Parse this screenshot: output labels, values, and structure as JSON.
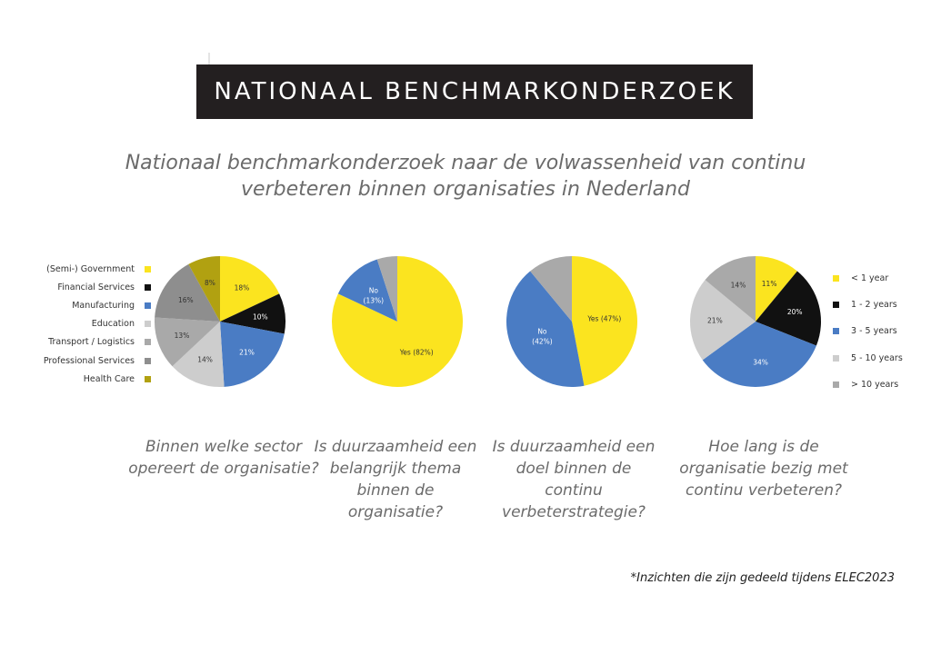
{
  "header": {
    "title": "NATIONAAL BENCHMARKONDERZOEK",
    "subtitle": "Nationaal benchmarkonderzoek naar de volwassenheid van continu verbeteren binnen organisaties in Nederland"
  },
  "colors": {
    "yellow": "#fbe41f",
    "black": "#111111",
    "blue": "#4a7cc4",
    "light_gray": "#cdcdcd",
    "mid_gray": "#a4a4a4",
    "dark_gray": "#8e8e8e",
    "olive": "#b1a111"
  },
  "chart_data": [
    {
      "type": "pie",
      "slices": [
        {
          "legend": "(Semi-) Government",
          "value": 18,
          "label": "18%",
          "color": "#fbe41f"
        },
        {
          "legend": "Financial Services",
          "value": 10,
          "label": "10%",
          "color": "#111111"
        },
        {
          "legend": "Manufacturing",
          "value": 21,
          "label": "21%",
          "color": "#4a7cc4"
        },
        {
          "legend": "Education",
          "value": 14,
          "label": "14%",
          "color": "#cdcdcd"
        },
        {
          "legend": "Transport / Logistics",
          "value": 13,
          "label": "13%",
          "color": "#a9a9a9"
        },
        {
          "legend": "Professional Services",
          "value": 16,
          "label": "16%",
          "color": "#8e8e8e"
        },
        {
          "legend": "Health Care",
          "value": 8,
          "label": "8%",
          "color": "#b1a111"
        }
      ],
      "legend_position": "left",
      "caption": "Binnen welke sector opereert de organisatie?"
    },
    {
      "type": "pie",
      "slices": [
        {
          "value": 82,
          "label": "Yes (82%)",
          "color": "#fbe41f"
        },
        {
          "value": 13,
          "label": "No (13%)",
          "color": "#4a7cc4"
        },
        {
          "value": 5,
          "label": "",
          "color": "#a9a9a9"
        }
      ],
      "caption": "Is duurzaamheid een belangrijk thema binnen de organisatie?"
    },
    {
      "type": "pie",
      "slices": [
        {
          "value": 47,
          "label": "Yes (47%)",
          "color": "#fbe41f"
        },
        {
          "value": 42,
          "label": "No (42%)",
          "color": "#4a7cc4"
        },
        {
          "value": 11,
          "label": "",
          "color": "#a9a9a9"
        }
      ],
      "caption": "Is duurzaamheid een doel binnen de continu verbeterstrategie?"
    },
    {
      "type": "pie",
      "slices": [
        {
          "legend": "< 1 year",
          "value": 11,
          "label": "11%",
          "color": "#fbe41f"
        },
        {
          "legend": "1 - 2 years",
          "value": 20,
          "label": "20%",
          "color": "#111111"
        },
        {
          "legend": "3 - 5 years",
          "value": 34,
          "label": "34%",
          "color": "#4a7cc4"
        },
        {
          "legend": "5 - 10 years",
          "value": 21,
          "label": "21%",
          "color": "#cdcdcd"
        },
        {
          "legend": "> 10 years",
          "value": 14,
          "label": "14%",
          "color": "#a9a9a9"
        }
      ],
      "legend_position": "right",
      "caption": "Hoe lang is de organisatie bezig met continu verbeteren?"
    }
  ],
  "footnote": "*Inzichten die zijn gedeeld tijdens ELEC2023"
}
